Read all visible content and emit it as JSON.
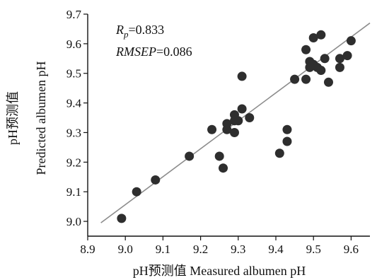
{
  "chart_data": {
    "type": "scatter",
    "xlabel": "pH预测值  Measured albumen pH",
    "ylabel_cn": "pH预测值",
    "ylabel_en": "Predicted albumen pH",
    "xlim": [
      8.9,
      9.65
    ],
    "ylim": [
      8.95,
      9.7
    ],
    "x_ticks": [
      "8.9",
      "9.0",
      "9.1",
      "9.2",
      "9.3",
      "9.4",
      "9.5",
      "9.6"
    ],
    "y_ticks": [
      "9.0",
      "9.1",
      "9.2",
      "9.3",
      "9.4",
      "9.5",
      "9.6",
      "9.7"
    ],
    "annotations": [
      {
        "label_main": "R",
        "label_sub": "p",
        "value": "=0.833"
      },
      {
        "label_main": "RMSEP",
        "label_sub": "",
        "value": "=0.086"
      }
    ],
    "fit_line": {
      "x": [
        8.935,
        9.65
      ],
      "y": [
        8.995,
        9.67
      ]
    },
    "points": [
      {
        "x": 8.99,
        "y": 9.01
      },
      {
        "x": 9.03,
        "y": 9.1
      },
      {
        "x": 9.08,
        "y": 9.14
      },
      {
        "x": 9.17,
        "y": 9.22
      },
      {
        "x": 9.23,
        "y": 9.31
      },
      {
        "x": 9.25,
        "y": 9.22
      },
      {
        "x": 9.26,
        "y": 9.18
      },
      {
        "x": 9.27,
        "y": 9.31
      },
      {
        "x": 9.27,
        "y": 9.33
      },
      {
        "x": 9.29,
        "y": 9.3
      },
      {
        "x": 9.29,
        "y": 9.34
      },
      {
        "x": 9.29,
        "y": 9.36
      },
      {
        "x": 9.3,
        "y": 9.34
      },
      {
        "x": 9.31,
        "y": 9.38
      },
      {
        "x": 9.31,
        "y": 9.49
      },
      {
        "x": 9.33,
        "y": 9.35
      },
      {
        "x": 9.41,
        "y": 9.23
      },
      {
        "x": 9.43,
        "y": 9.27
      },
      {
        "x": 9.43,
        "y": 9.31
      },
      {
        "x": 9.45,
        "y": 9.48
      },
      {
        "x": 9.48,
        "y": 9.48
      },
      {
        "x": 9.48,
        "y": 9.58
      },
      {
        "x": 9.49,
        "y": 9.54
      },
      {
        "x": 9.49,
        "y": 9.52
      },
      {
        "x": 9.5,
        "y": 9.53
      },
      {
        "x": 9.5,
        "y": 9.62
      },
      {
        "x": 9.51,
        "y": 9.52
      },
      {
        "x": 9.52,
        "y": 9.63
      },
      {
        "x": 9.52,
        "y": 9.51
      },
      {
        "x": 9.53,
        "y": 9.55
      },
      {
        "x": 9.54,
        "y": 9.47
      },
      {
        "x": 9.57,
        "y": 9.52
      },
      {
        "x": 9.57,
        "y": 9.55
      },
      {
        "x": 9.59,
        "y": 9.56
      },
      {
        "x": 9.6,
        "y": 9.61
      }
    ],
    "marker_color": "#2e2e2e",
    "line_color": "#8c8c8c",
    "axis_color": "#111111"
  }
}
